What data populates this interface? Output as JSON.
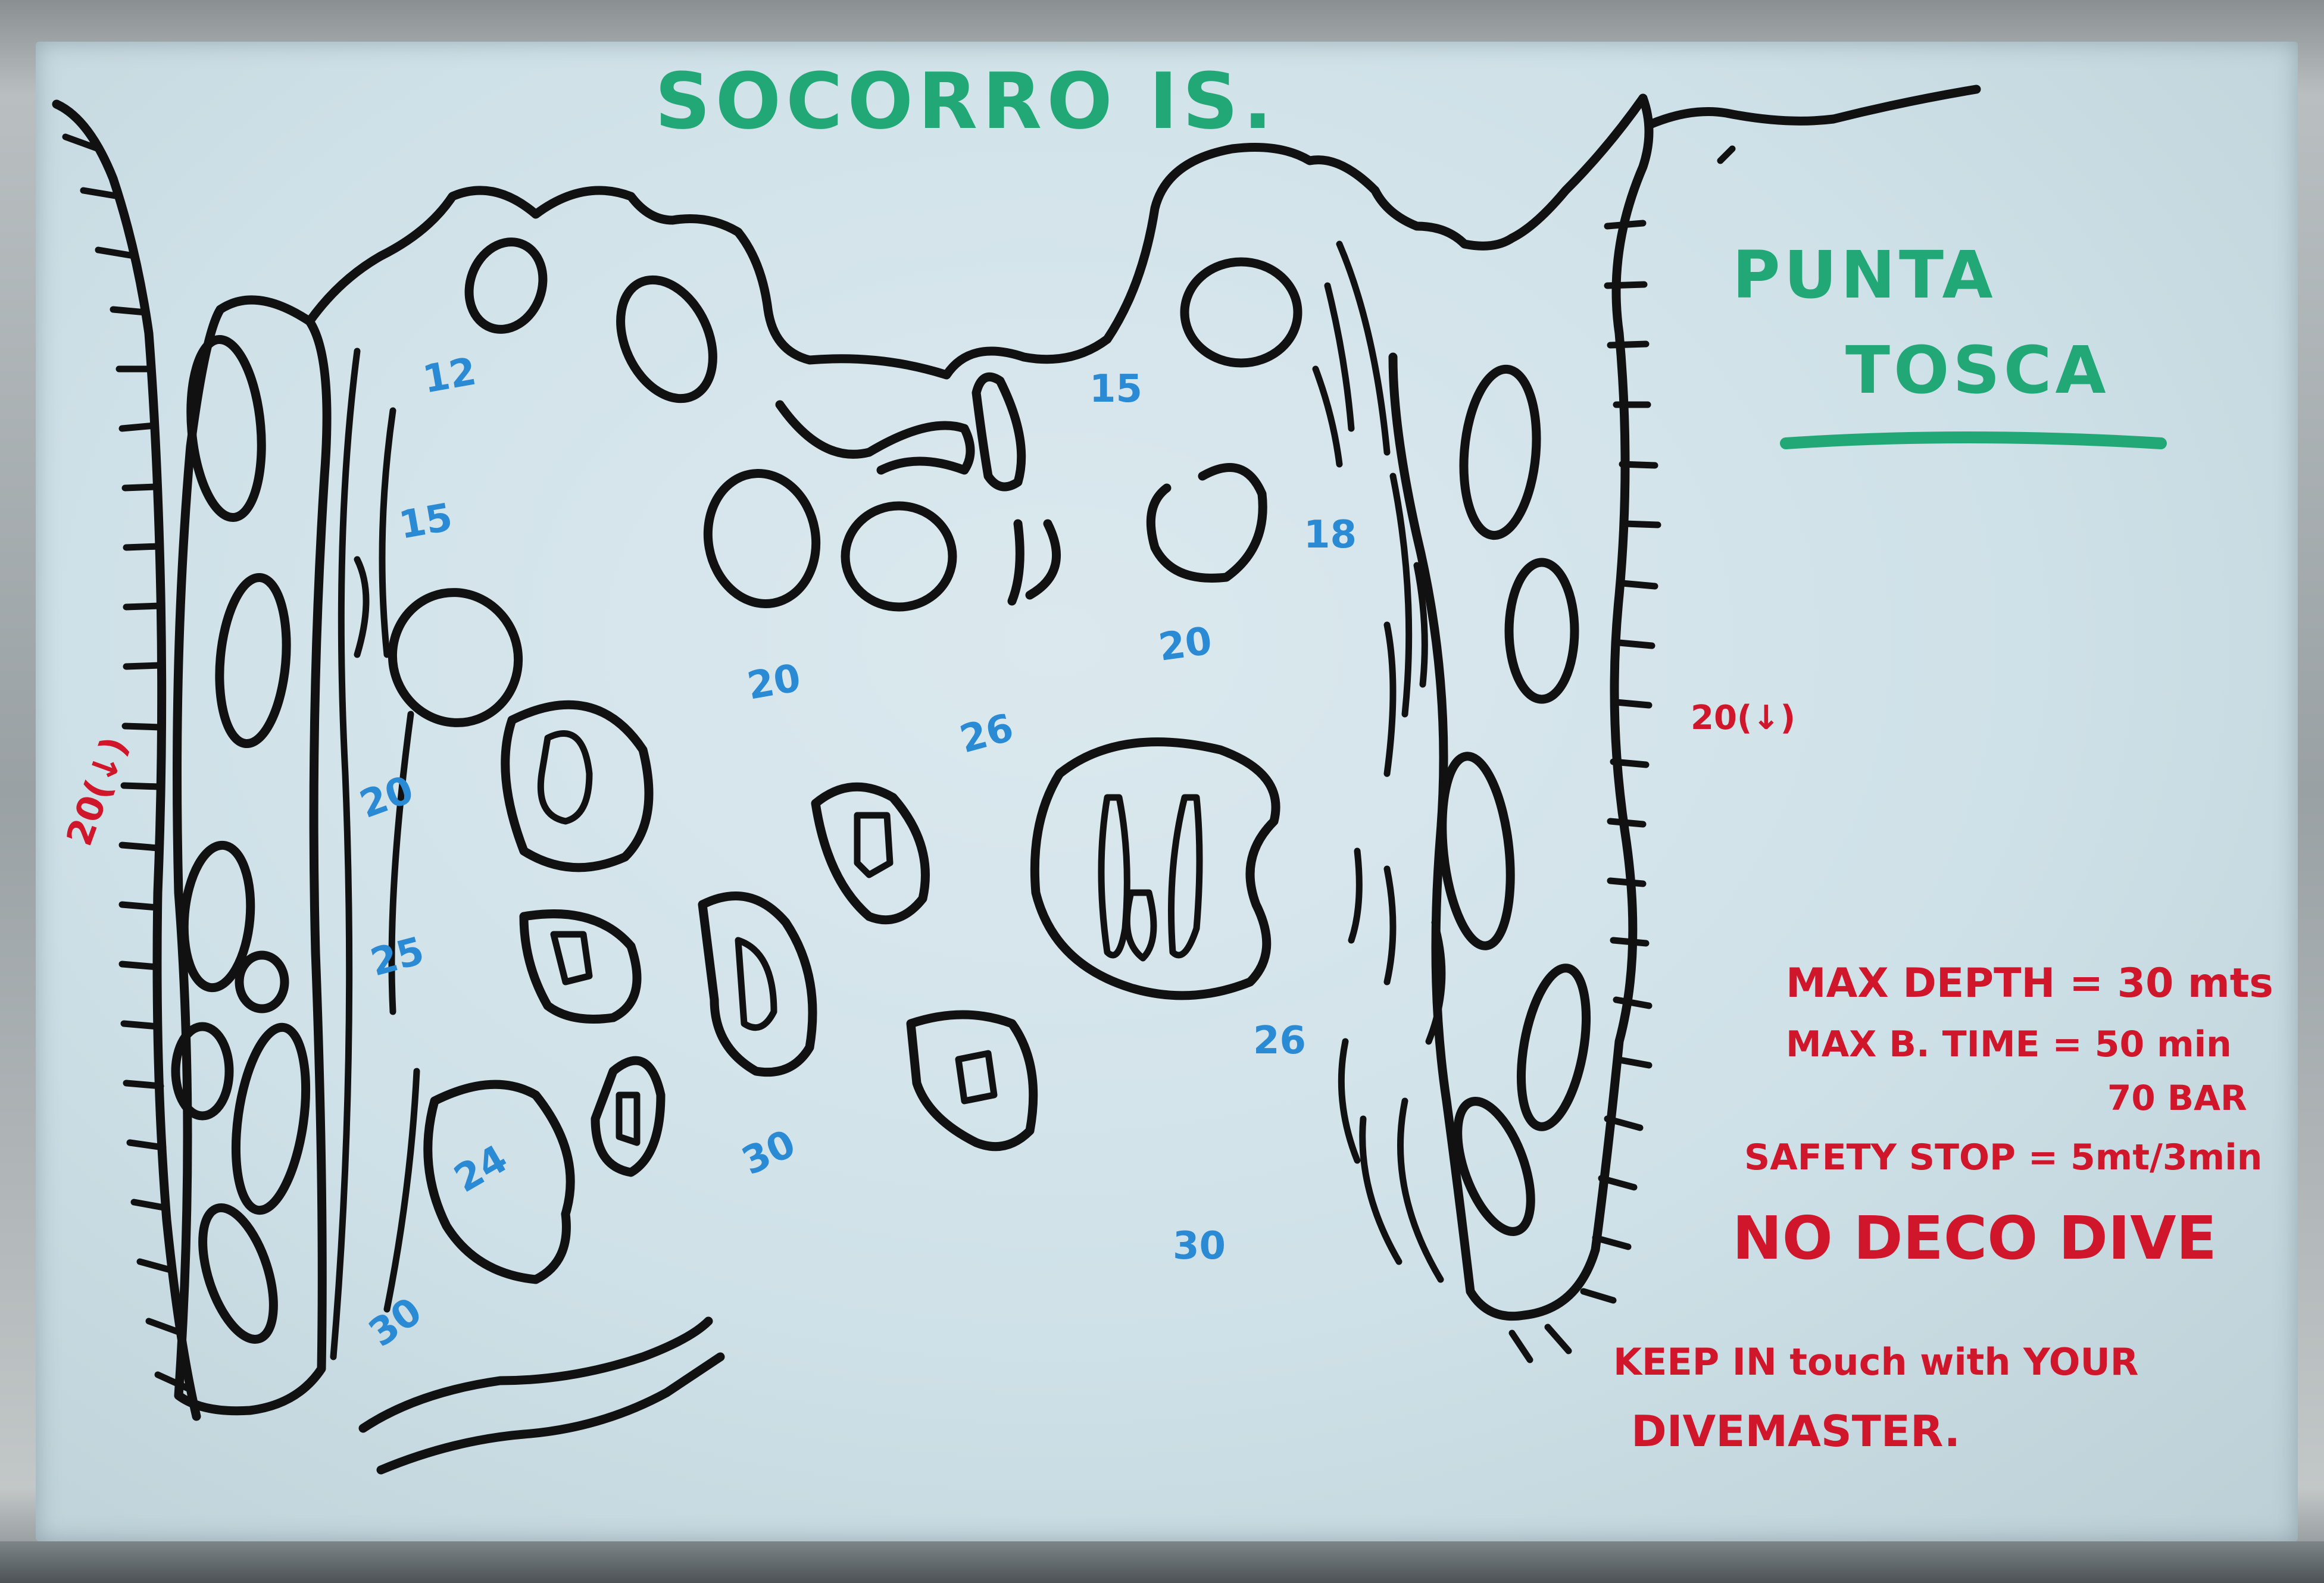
{
  "header": {
    "location": "SOCORRO IS.",
    "site_name_line1": "PUNTA",
    "site_name_line2": "TOSCA"
  },
  "colors": {
    "ink": "#111111",
    "title_green": "#22a876",
    "depth_blue": "#2a8ad4",
    "notes_red": "#d0162a",
    "board": "#d3e4ea"
  },
  "walls": {
    "left_depth": "20(↓)",
    "right_depth": "20(↓)"
  },
  "depths": [
    "12",
    "15",
    "15",
    "18",
    "20",
    "20",
    "26",
    "20",
    "25",
    "24",
    "30",
    "30",
    "26",
    "30"
  ],
  "dive_briefing": {
    "max_depth": "MAX DEPTH = 30 mts",
    "bottom_time": "MAX B. TIME = 50 min",
    "bar": "70 BAR",
    "safety_stop": "SAFETY STOP = 5mt/3min",
    "dive_type": "NO DECO DIVE",
    "reminder_line1": "KEEP IN touch with YOUR",
    "reminder_line2": "DIVEMASTER."
  }
}
